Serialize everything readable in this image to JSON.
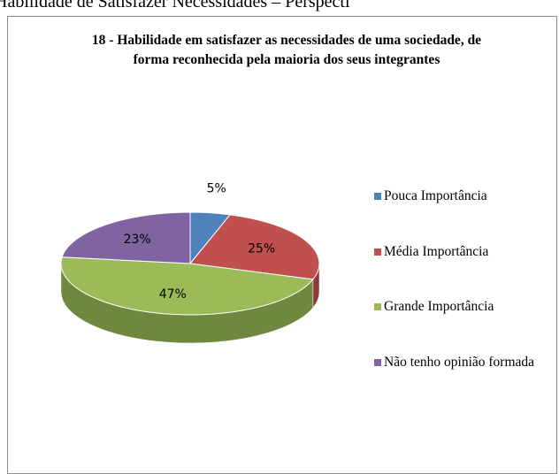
{
  "heading": "Habilidade de Satisfazer Necessidades – Perspecti",
  "chart_data": {
    "type": "pie",
    "title": "18 - Habilidade em satisfazer as necessidades de uma sociedade, de forma reconhecida pela maioria dos seus integrantes",
    "categories": [
      "Pouca Importância",
      "Média Importância",
      "Grande Importância",
      "Não tenho opinião formada"
    ],
    "values": [
      5,
      25,
      47,
      23
    ],
    "value_labels": [
      "5%",
      "25%",
      "47%",
      "23%"
    ],
    "colors": [
      "#4f81bd",
      "#c0504d",
      "#9bbb59",
      "#8064a2"
    ],
    "legend": "right"
  }
}
